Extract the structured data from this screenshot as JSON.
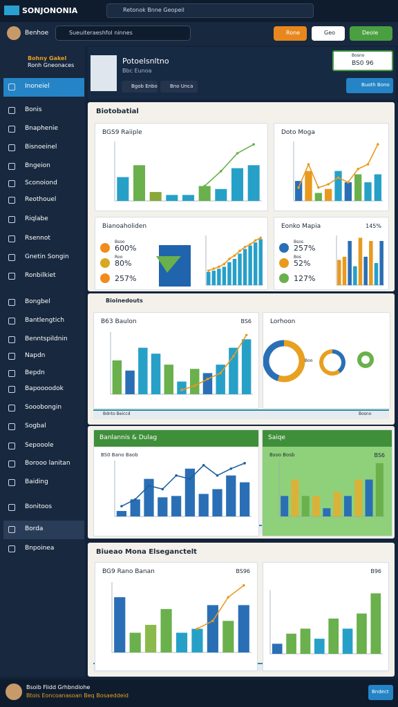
{
  "topbar": {
    "brand": "SONJONONIA",
    "search": "Retonok Bnne Geopeil"
  },
  "navbar": {
    "user": "Benhoe",
    "search": "Sueuiteraeshfol ninnes",
    "buttons": [
      "Rone",
      "Geo",
      "Deole"
    ]
  },
  "sidebar": {
    "header": [
      "Bohny Gakel",
      "Ronh Gneonaces"
    ],
    "items": [
      {
        "label": "Inoneiel",
        "selected": true
      },
      {
        "label": "Bonis"
      },
      {
        "label": "Bnaphenie"
      },
      {
        "label": "Bisnoeinel"
      },
      {
        "label": "Bngeion"
      },
      {
        "label": "Sconoiond"
      },
      {
        "label": "Reothouel"
      },
      {
        "label": "Riqlabe"
      },
      {
        "label": "Rsennot"
      },
      {
        "label": "Gnetin Songin"
      },
      {
        "label": "Ronbilkiet"
      },
      {
        "label": "Bongbel"
      },
      {
        "label": "Bantlengtich"
      },
      {
        "label": "Benntspildnin"
      },
      {
        "label": "Napdn"
      },
      {
        "label": "Bepdn"
      },
      {
        "label": "Bapoooodok"
      },
      {
        "label": "Sooobongin"
      },
      {
        "label": "Sogbal"
      },
      {
        "label": "Sepooole"
      },
      {
        "label": "Borooo lanitan"
      },
      {
        "label": "Baiding"
      },
      {
        "label": "Bonitoos"
      },
      {
        "label": "Borda",
        "selected": true
      },
      {
        "label": "Bnpoinea"
      }
    ]
  },
  "profile": {
    "name": "Potoelsnltno",
    "role": "Bbc Eunoa",
    "tags": [
      "Bgob Enbo",
      "Bno Unca"
    ],
    "stat_label": "Bosno",
    "stat_value": "BS0 96",
    "button": "Buoth Bono"
  },
  "panels": [
    {
      "title": "Biotobatial"
    },
    {
      "title": "Bioinedouts",
      "footer": [
        "Bdnto Beiccd",
        "Bosno"
      ]
    },
    {
      "footer": [
        "Bdnto Beiccd",
        "Bosno"
      ]
    },
    {
      "title": "Biueao Mona Elseganctelt",
      "footer": [
        "Bdnto Beiccd",
        "Bosno"
      ]
    }
  ],
  "cards": [
    {
      "title": "BGS9 Raiiple",
      "bars": [
        40,
        60,
        15,
        10,
        10,
        25,
        20,
        55,
        60
      ],
      "colors": [
        "#27a0c8",
        "#6ab04c",
        "#8aa83a",
        "#27a0c8",
        "#27a0c8",
        "#6ab04c",
        "#27a0c8",
        "#27a0c8",
        "#27a0c8"
      ],
      "line": [
        null,
        null,
        null,
        null,
        null,
        25,
        50,
        80,
        95
      ],
      "line_color": "#6ab04c"
    },
    {
      "title": "Doto Moga",
      "bars": [
        30,
        45,
        12,
        18,
        45,
        28,
        40,
        28,
        40
      ],
      "colors": [
        "#2a6fb5",
        "#e89a1f",
        "#6ab04c",
        "#e89a1f",
        "#27a0c8",
        "#2a6fb5",
        "#6ab04c",
        "#27a0c8",
        "#27a0c8"
      ],
      "line": [
        20,
        55,
        20,
        25,
        35,
        28,
        48,
        55,
        85
      ],
      "line_color": "#e89a1f"
    },
    {
      "title": "Bianoaholiden",
      "legend": [
        {
          "label": "Bsoo",
          "value": "600%",
          "color": "#f08c1e"
        },
        {
          "label": "Roo",
          "value": "80%",
          "color": "#d8a820"
        },
        {
          "value": "257%",
          "color": "#f08c1e"
        }
      ],
      "bars": [
        20,
        22,
        25,
        28,
        35,
        40,
        48,
        55,
        60,
        65,
        70
      ],
      "colors": [
        "#27a0c8"
      ],
      "line": [
        22,
        25,
        28,
        32,
        40,
        45,
        52,
        58,
        62,
        68,
        72
      ],
      "line_color": "#e89a1f"
    },
    {
      "title": "Eonko Mapia",
      "note": "145%",
      "legend": [
        {
          "label": "Bsos",
          "value": "257%",
          "color": "#2a6fb5"
        },
        {
          "label": "Bos",
          "value": "52%",
          "color": "#e89a1f"
        },
        {
          "value": "127%",
          "color": "#6ab04c"
        }
      ],
      "bars": [
        40,
        45,
        70,
        30,
        75,
        45,
        70,
        35,
        70
      ],
      "colors": [
        "#e89a1f",
        "#e89a1f",
        "#2a6fb5",
        "#27a0c8",
        "#e89a1f",
        "#2a6fb5",
        "#e89a1f",
        "#27a0c8",
        "#2a6fb5"
      ]
    },
    {
      "title": "B63 Baulon",
      "note": "BS6",
      "bars": [
        40,
        28,
        55,
        48,
        35,
        15,
        30,
        25,
        35,
        55,
        65
      ],
      "colors": [
        "#6ab04c",
        "#2a6fb5",
        "#27a0c8",
        "#27a0c8",
        "#6ab04c",
        "#27a0c8",
        "#6ab04c",
        "#2a6fb5",
        "#27a0c8",
        "#27a0c8",
        "#27a0c8"
      ],
      "line": [
        null,
        null,
        null,
        null,
        null,
        5,
        10,
        18,
        25,
        45,
        70
      ],
      "line_color": "#e89a1f"
    },
    {
      "title": "Lorhoon",
      "donut_label": "Boo",
      "donuts": [
        {
          "values": [
            55,
            45
          ],
          "colors": [
            "#e8a020",
            "#2a6fb5"
          ]
        },
        {
          "values": [
            40,
            60
          ],
          "colors": [
            "#2a6fb5",
            "#e8a020"
          ]
        },
        {
          "values": [
            100
          ],
          "colors": [
            "#6ab04c"
          ]
        }
      ]
    },
    {
      "title": "Banlannis & Dulag",
      "theme": "green",
      "subtitle": "BS0 Bano Baob",
      "bars": [
        8,
        25,
        55,
        28,
        30,
        70,
        33,
        40,
        60,
        50
      ],
      "colors": [
        "#2a6fb5"
      ],
      "line": [
        15,
        25,
        45,
        40,
        60,
        55,
        75,
        60,
        70,
        78
      ],
      "line_color": "#1f5fa0"
    },
    {
      "title": "Saiqe",
      "theme": "green",
      "bg": "#8fd07a",
      "subtitle": "Bsoo Bosb",
      "note": "BS6",
      "bars": [
        25,
        45,
        25,
        25,
        10,
        30,
        25,
        45,
        45,
        65
      ],
      "colors": [
        "#2a6fb5",
        "#d9b23a",
        "#6ab04c",
        "#d9b23a",
        "#2a6fb5",
        "#d9b23a",
        "#2a6fb5",
        "#d9b23a",
        "#2a6fb5",
        "#6ab04c"
      ]
    },
    {
      "title": "BG9 Rano Banan",
      "note": "BS96",
      "bars": [
        70,
        25,
        35,
        55,
        25,
        30,
        60,
        40,
        60
      ],
      "colors": [
        "#2a6fb5",
        "#6ab04c",
        "#8aba4c",
        "#6ab04c",
        "#27a0c8",
        "#27a0c8",
        "#2a6fb5",
        "#6ab04c",
        "#2a6fb5"
      ],
      "line": [
        null,
        null,
        null,
        null,
        null,
        30,
        40,
        70,
        85
      ],
      "line_color": "#e89a1f"
    },
    {
      "note": "B96",
      "bars": [
        10,
        20,
        25,
        15,
        35,
        25,
        40,
        60
      ],
      "colors": [
        "#2a6fb5",
        "#6ab04c",
        "#6ab04c",
        "#27a0c8",
        "#6ab04c",
        "#27a0c8",
        "#6ab04c",
        "#6ab04c"
      ]
    }
  ],
  "footer": {
    "line1": "Bsoib Fiidd Grhbndiohe",
    "line2": "Btois Eoncoanasoan Beq Bosaeddeid",
    "button": "Bndect"
  }
}
